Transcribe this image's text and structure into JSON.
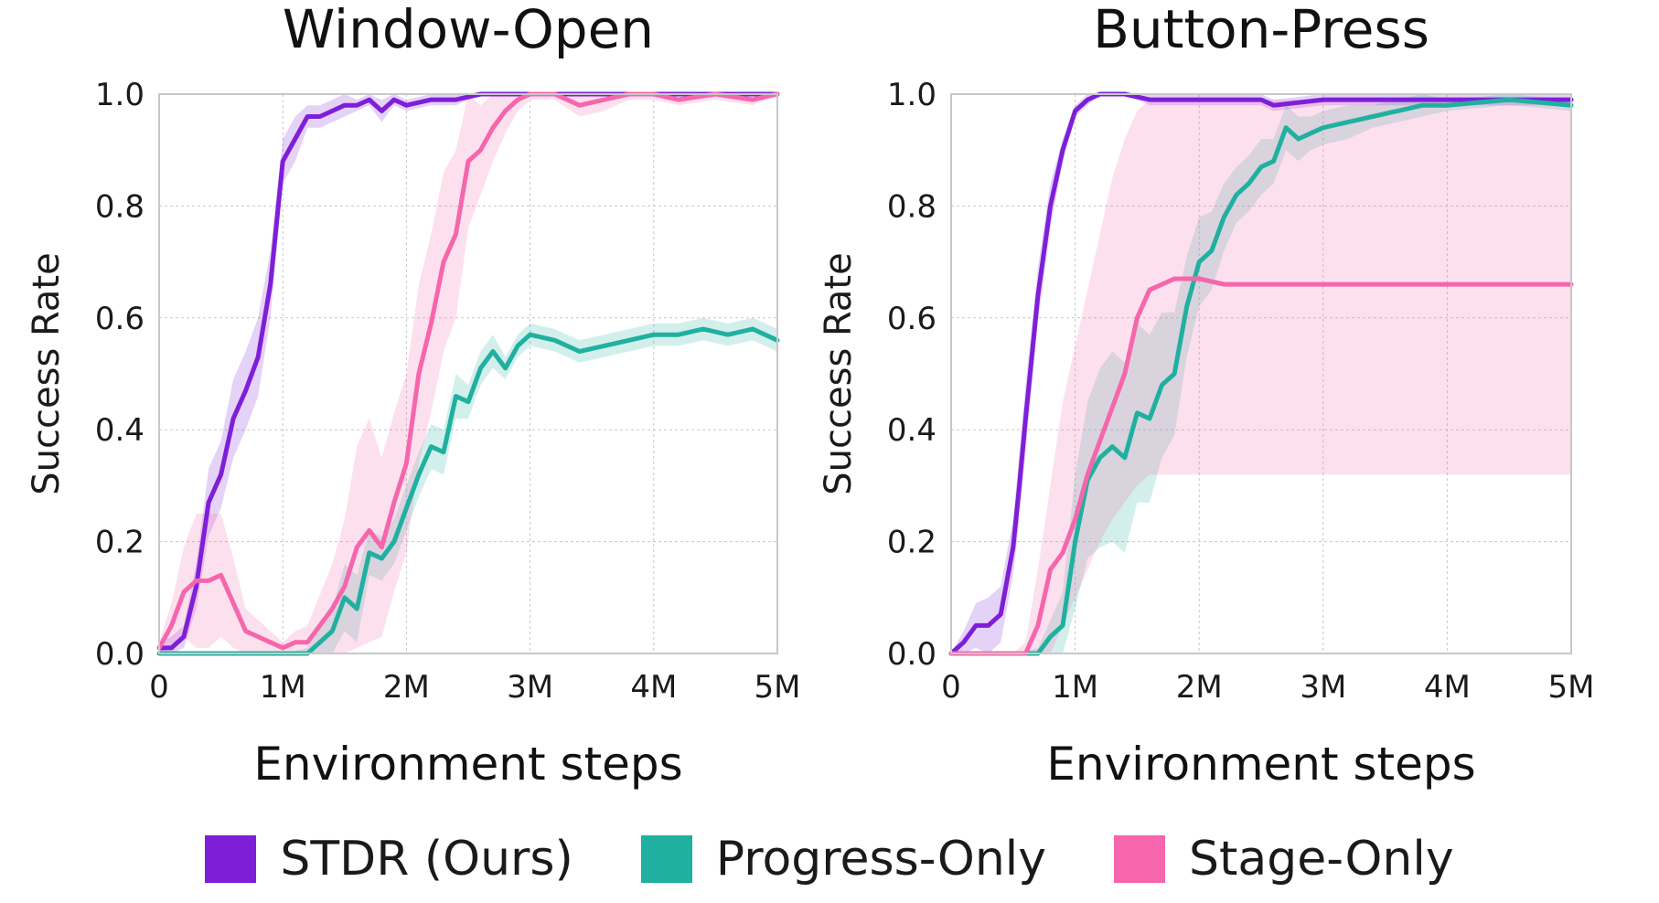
{
  "chart_data": [
    {
      "type": "line",
      "title": "Window-Open",
      "xlabel": "Environment steps",
      "ylabel": "Success Rate",
      "xlim": [
        0,
        5000000
      ],
      "ylim": [
        0,
        1
      ],
      "x_ticks": [
        0,
        1000000,
        2000000,
        3000000,
        4000000,
        5000000
      ],
      "x_tick_labels": [
        "0",
        "1M",
        "2M",
        "3M",
        "4M",
        "5M"
      ],
      "y_ticks": [
        0,
        0.2,
        0.4,
        0.6,
        0.8,
        1.0
      ],
      "y_tick_labels": [
        "0.0",
        "0.2",
        "0.4",
        "0.6",
        "0.8",
        "1.0"
      ],
      "grid": true,
      "series": [
        {
          "name": "STDR (Ours)",
          "color": "#7e1fd8",
          "x": [
            0,
            100000,
            200000,
            300000,
            400000,
            500000,
            600000,
            700000,
            800000,
            900000,
            1000000,
            1100000,
            1200000,
            1300000,
            1400000,
            1500000,
            1600000,
            1700000,
            1800000,
            1900000,
            2000000,
            2200000,
            2400000,
            2600000,
            3000000,
            4000000,
            5000000
          ],
          "y": [
            0.01,
            0.01,
            0.03,
            0.12,
            0.27,
            0.32,
            0.42,
            0.47,
            0.53,
            0.66,
            0.88,
            0.92,
            0.96,
            0.96,
            0.97,
            0.98,
            0.98,
            0.99,
            0.97,
            0.99,
            0.98,
            0.99,
            0.99,
            1.0,
            1.0,
            1.0,
            1.0
          ],
          "band_width": [
            0.01,
            0.02,
            0.02,
            0.04,
            0.06,
            0.06,
            0.07,
            0.07,
            0.07,
            0.06,
            0.04,
            0.04,
            0.02,
            0.02,
            0.02,
            0.02,
            0.01,
            0.01,
            0.02,
            0.01,
            0.01,
            0.01,
            0.01,
            0.0,
            0.0,
            0.0,
            0.0
          ]
        },
        {
          "name": "Progress-Only",
          "color": "#20b0a0",
          "x": [
            0,
            500000,
            1000000,
            1200000,
            1400000,
            1500000,
            1600000,
            1700000,
            1800000,
            1900000,
            2000000,
            2100000,
            2200000,
            2300000,
            2400000,
            2500000,
            2600000,
            2700000,
            2800000,
            2900000,
            3000000,
            3200000,
            3400000,
            3600000,
            3800000,
            4000000,
            4200000,
            4400000,
            4600000,
            4800000,
            5000000
          ],
          "y": [
            0,
            0,
            0,
            0.0,
            0.04,
            0.1,
            0.08,
            0.18,
            0.17,
            0.2,
            0.26,
            0.32,
            0.37,
            0.36,
            0.46,
            0.45,
            0.51,
            0.54,
            0.51,
            0.55,
            0.57,
            0.56,
            0.54,
            0.55,
            0.56,
            0.57,
            0.57,
            0.58,
            0.57,
            0.58,
            0.56
          ],
          "band_width": [
            0,
            0,
            0,
            0.01,
            0.04,
            0.06,
            0.06,
            0.04,
            0.04,
            0.04,
            0.04,
            0.04,
            0.04,
            0.04,
            0.04,
            0.03,
            0.03,
            0.03,
            0.02,
            0.02,
            0.02,
            0.02,
            0.02,
            0.02,
            0.02,
            0.02,
            0.02,
            0.02,
            0.02,
            0.02,
            0.02
          ]
        },
        {
          "name": "Stage-Only",
          "color": "#f566ac",
          "x": [
            0,
            100000,
            200000,
            300000,
            400000,
            500000,
            600000,
            700000,
            800000,
            900000,
            1000000,
            1100000,
            1200000,
            1400000,
            1500000,
            1600000,
            1700000,
            1800000,
            1900000,
            2000000,
            2100000,
            2200000,
            2300000,
            2400000,
            2500000,
            2600000,
            2700000,
            2800000,
            2900000,
            3000000,
            3200000,
            3400000,
            3600000,
            3800000,
            4000000,
            4200000,
            4500000,
            4800000,
            5000000
          ],
          "y": [
            0.01,
            0.05,
            0.11,
            0.13,
            0.13,
            0.14,
            0.09,
            0.04,
            0.03,
            0.02,
            0.01,
            0.02,
            0.02,
            0.08,
            0.12,
            0.19,
            0.22,
            0.19,
            0.27,
            0.34,
            0.5,
            0.59,
            0.7,
            0.75,
            0.88,
            0.9,
            0.94,
            0.97,
            0.99,
            1.0,
            1.0,
            0.98,
            0.99,
            1.0,
            1.0,
            0.99,
            1.0,
            0.99,
            1.0
          ],
          "band_width": [
            0.01,
            0.04,
            0.08,
            0.12,
            0.12,
            0.11,
            0.08,
            0.04,
            0.03,
            0.02,
            0.01,
            0.02,
            0.03,
            0.08,
            0.12,
            0.18,
            0.2,
            0.16,
            0.16,
            0.16,
            0.16,
            0.16,
            0.16,
            0.15,
            0.12,
            0.08,
            0.06,
            0.04,
            0.02,
            0.01,
            0.01,
            0.02,
            0.02,
            0.01,
            0.01,
            0.01,
            0.01,
            0.01,
            0.0
          ]
        }
      ]
    },
    {
      "type": "line",
      "title": "Button-Press",
      "xlabel": "Environment steps",
      "ylabel": "Success Rate",
      "xlim": [
        0,
        5000000
      ],
      "ylim": [
        0,
        1
      ],
      "x_ticks": [
        0,
        1000000,
        2000000,
        3000000,
        4000000,
        5000000
      ],
      "x_tick_labels": [
        "0",
        "1M",
        "2M",
        "3M",
        "4M",
        "5M"
      ],
      "y_ticks": [
        0,
        0.2,
        0.4,
        0.6,
        0.8,
        1.0
      ],
      "y_tick_labels": [
        "0.0",
        "0.2",
        "0.4",
        "0.6",
        "0.8",
        "1.0"
      ],
      "grid": true,
      "series": [
        {
          "name": "STDR (Ours)",
          "color": "#7e1fd8",
          "x": [
            0,
            100000,
            200000,
            300000,
            400000,
            500000,
            550000,
            600000,
            700000,
            800000,
            900000,
            1000000,
            1100000,
            1200000,
            1400000,
            1600000,
            1800000,
            2000000,
            2500000,
            2600000,
            3000000,
            4000000,
            5000000
          ],
          "y": [
            0.0,
            0.02,
            0.05,
            0.05,
            0.07,
            0.19,
            0.3,
            0.42,
            0.64,
            0.8,
            0.9,
            0.97,
            0.99,
            1.0,
            1.0,
            0.99,
            0.99,
            0.99,
            0.99,
            0.98,
            0.99,
            0.99,
            0.99
          ],
          "band_width": [
            0.0,
            0.02,
            0.04,
            0.05,
            0.05,
            0.05,
            0.06,
            0.06,
            0.05,
            0.04,
            0.02,
            0.01,
            0.01,
            0.0,
            0.0,
            0.01,
            0.01,
            0.01,
            0.01,
            0.01,
            0.01,
            0.01,
            0.01
          ]
        },
        {
          "name": "Progress-Only",
          "color": "#20b0a0",
          "x": [
            0,
            500000,
            700000,
            800000,
            900000,
            1000000,
            1100000,
            1200000,
            1300000,
            1400000,
            1500000,
            1600000,
            1700000,
            1800000,
            1900000,
            2000000,
            2100000,
            2200000,
            2300000,
            2400000,
            2500000,
            2600000,
            2700000,
            2800000,
            2900000,
            3000000,
            3200000,
            3400000,
            3600000,
            3800000,
            4000000,
            4500000,
            5000000
          ],
          "y": [
            0,
            0.0,
            0.0,
            0.03,
            0.05,
            0.2,
            0.31,
            0.35,
            0.37,
            0.35,
            0.43,
            0.42,
            0.48,
            0.5,
            0.62,
            0.7,
            0.72,
            0.78,
            0.82,
            0.84,
            0.87,
            0.88,
            0.94,
            0.92,
            0.93,
            0.94,
            0.95,
            0.96,
            0.97,
            0.98,
            0.98,
            0.99,
            0.98
          ],
          "band_width": [
            0,
            0.0,
            0.01,
            0.03,
            0.06,
            0.12,
            0.14,
            0.16,
            0.17,
            0.17,
            0.16,
            0.15,
            0.13,
            0.11,
            0.09,
            0.08,
            0.07,
            0.06,
            0.05,
            0.05,
            0.05,
            0.04,
            0.04,
            0.04,
            0.03,
            0.03,
            0.03,
            0.02,
            0.02,
            0.02,
            0.01,
            0.01,
            0.01
          ]
        },
        {
          "name": "Stage-Only",
          "color": "#f566ac",
          "x": [
            0,
            500000,
            600000,
            700000,
            800000,
            900000,
            1000000,
            1100000,
            1200000,
            1300000,
            1400000,
            1500000,
            1600000,
            1700000,
            1800000,
            2000000,
            2200000,
            2500000,
            3000000,
            3500000,
            4000000,
            4500000,
            5000000
          ],
          "y": [
            0,
            0.0,
            0.0,
            0.05,
            0.15,
            0.18,
            0.24,
            0.32,
            0.38,
            0.44,
            0.5,
            0.6,
            0.65,
            0.66,
            0.67,
            0.67,
            0.66,
            0.66,
            0.66,
            0.66,
            0.66,
            0.66,
            0.66
          ],
          "band_lo": [
            0,
            0.0,
            0.0,
            0.0,
            0.0,
            0.05,
            0.1,
            0.15,
            0.2,
            0.24,
            0.27,
            0.3,
            0.32,
            0.32,
            0.32,
            0.32,
            0.32,
            0.32,
            0.32,
            0.32,
            0.32,
            0.32,
            0.32
          ],
          "band_hi": [
            0,
            0.0,
            0.02,
            0.15,
            0.3,
            0.45,
            0.55,
            0.65,
            0.75,
            0.85,
            0.92,
            0.97,
            0.99,
            0.99,
            0.99,
            0.99,
            0.99,
            0.99,
            0.99,
            0.99,
            0.99,
            0.99,
            0.99
          ]
        }
      ]
    }
  ],
  "legend": {
    "items": [
      {
        "label": "STDR (Ours)",
        "color": "#7e1fd8"
      },
      {
        "label": "Progress-Only",
        "color": "#20b0a0"
      },
      {
        "label": "Stage-Only",
        "color": "#f566ac"
      }
    ]
  }
}
